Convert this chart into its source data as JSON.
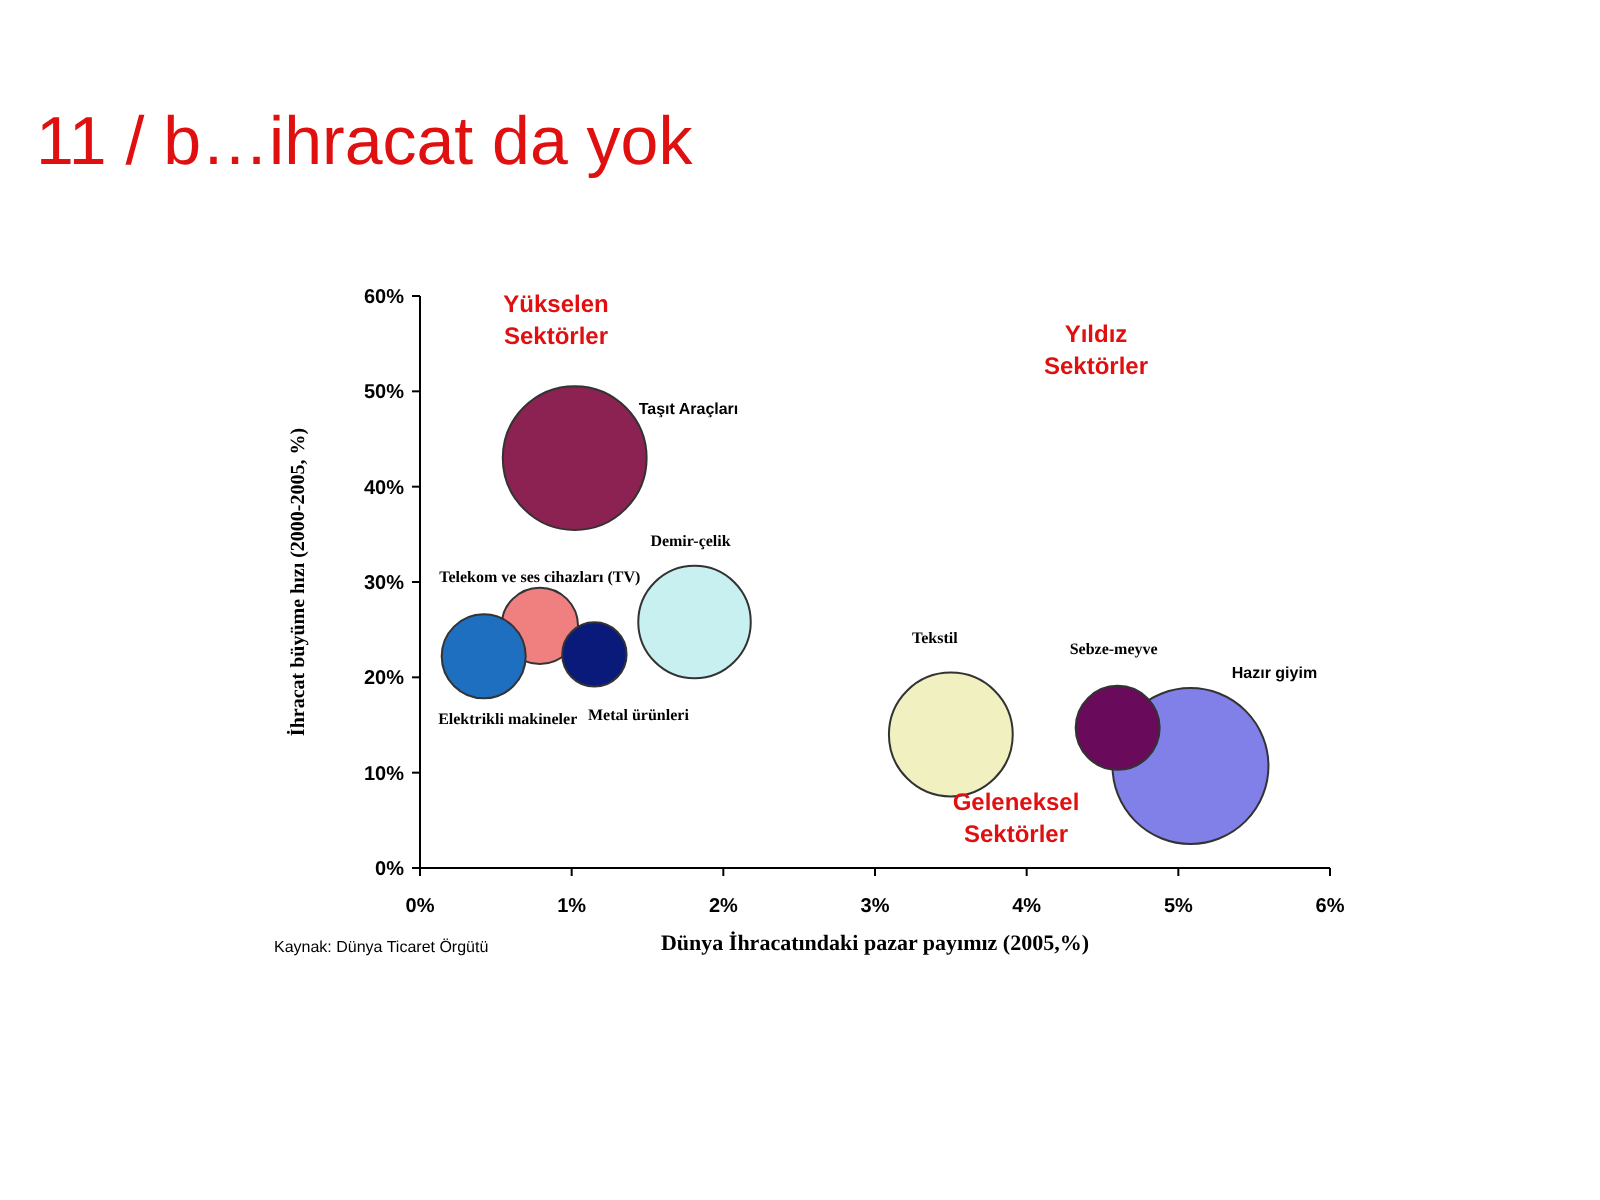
{
  "chart_data": {
    "type": "bubble",
    "title": "11 / b…ihracat da yok",
    "xlabel": "Dünya İhracatındaki pazar payımız (2005,%)",
    "ylabel": "İhracat büyüme hızı (2000-2005, %)",
    "xlim": [
      0,
      6
    ],
    "xticks": [
      {
        "value": 0,
        "label": "0%"
      },
      {
        "value": 1,
        "label": "1%"
      },
      {
        "value": 2,
        "label": "2%"
      },
      {
        "value": 3,
        "label": "3%"
      },
      {
        "value": 4,
        "label": "4%"
      },
      {
        "value": 5,
        "label": "5%"
      },
      {
        "value": 6,
        "label": "6%"
      }
    ],
    "ylim": [
      0,
      60
    ],
    "yticks": [
      {
        "value": 0,
        "label": "0%"
      },
      {
        "value": 10,
        "label": "10%"
      },
      {
        "value": 20,
        "label": "20%"
      },
      {
        "value": 30,
        "label": "30%"
      },
      {
        "value": 40,
        "label": "40%"
      },
      {
        "value": 50,
        "label": "50%"
      },
      {
        "value": 60,
        "label": "60%"
      }
    ],
    "grid": false,
    "series": [
      {
        "name": "Taşıt Araçları",
        "color": "#8b2252",
        "x": [
          1.02
        ],
        "values": [
          43
        ],
        "sizes": [
          0.85
        ]
      },
      {
        "name": "Telekom ve ses cihazları (TV)",
        "color": "#f08080",
        "x": [
          0.79
        ],
        "values": [
          25.4
        ],
        "sizes": [
          0.24
        ]
      },
      {
        "name": "Elektrikli makineler",
        "color": "#1e6fc0",
        "x": [
          0.42
        ],
        "values": [
          22.2
        ],
        "sizes": [
          0.29
        ]
      },
      {
        "name": "Metal ürünleri",
        "color": "#0a1a7a",
        "x": [
          1.15
        ],
        "values": [
          22.4
        ],
        "sizes": [
          0.17
        ]
      },
      {
        "name": "Demir-çelik",
        "color": "#c8f0f0",
        "x": [
          1.81
        ],
        "values": [
          25.8
        ],
        "sizes": [
          0.52
        ]
      },
      {
        "name": "Tekstil",
        "color": "#f0f0c0",
        "x": [
          3.5
        ],
        "values": [
          14
        ],
        "sizes": [
          0.63
        ]
      },
      {
        "name": "Hazır giyim",
        "color": "#8080e8",
        "x": [
          5.08
        ],
        "values": [
          10.7
        ],
        "sizes": [
          1
        ]
      },
      {
        "name": "Sebze-meyve",
        "color": "#6a0a5a",
        "x": [
          4.6
        ],
        "values": [
          14.7
        ],
        "sizes": [
          0.29
        ]
      }
    ],
    "annotations": [
      "Yükselen Sektörler",
      "Yıldız Sektörler",
      "Geleneksel Sektörler",
      "Kaynak: Dünya Ticaret Örgütü"
    ]
  }
}
